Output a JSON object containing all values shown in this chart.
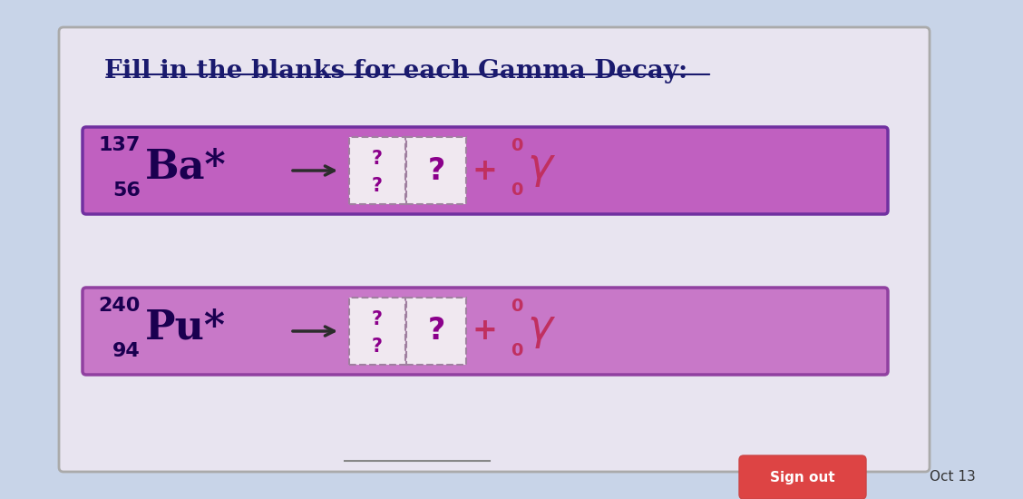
{
  "bg_color": "#c8d4e8",
  "title": "Fill in the blanks for each Gamma Decay:",
  "title_color": "#1a1a6e",
  "title_fontsize": 20,
  "card_bg": "#e8e4f0",
  "row1_bg": "#c060c0",
  "row2_bg": "#c878c8",
  "row1_border": "#7030a0",
  "row2_border": "#9040a0",
  "blank_bg": "#f0e8f0",
  "blank_border": "#a080a0",
  "element1": "Ba",
  "element2": "Pu",
  "mass1": "137",
  "atomic1": "56",
  "mass2": "240",
  "atomic2": "94",
  "gamma_color": "#c03060",
  "plus_color": "#c03060",
  "question_color": "#8b008b",
  "arrow_color": "#2c2c2c",
  "text_color": "#1a0050",
  "signout_bg": "#dd4444",
  "signout_text": "Sign out",
  "date_text": "Oct 13"
}
